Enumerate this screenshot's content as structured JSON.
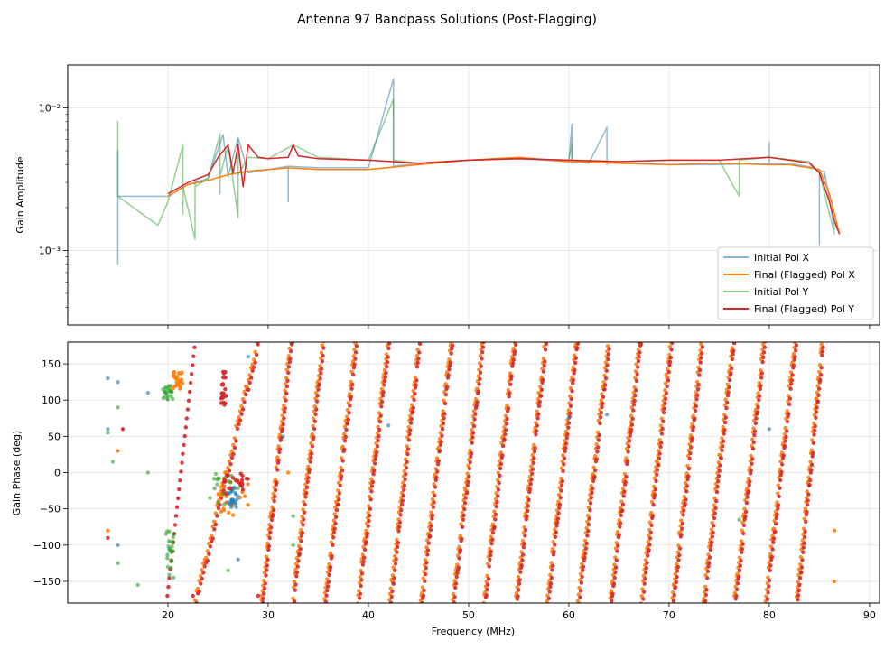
{
  "chart_data": {
    "type": "line",
    "title": "Antenna 97 Bandpass Solutions (Post-Flagging)",
    "xlabel": "Frequency (MHz)",
    "xlim": [
      10,
      91
    ],
    "x_ticks": [
      "20",
      "30",
      "40",
      "50",
      "60",
      "70",
      "80",
      "90"
    ],
    "x_tick_values": [
      20,
      30,
      40,
      50,
      60,
      70,
      80,
      90
    ],
    "colors": {
      "initial_x": "#1f77b4",
      "final_x": "#ff7f0e",
      "initial_y": "#2ca02c",
      "final_y": "#d62728"
    },
    "panels": [
      {
        "name": "amplitude",
        "ylabel": "Gain Amplitude",
        "yscale": "log",
        "ylim": [
          0.0003,
          0.02
        ],
        "y_ticks": [
          "10⁻²",
          "10⁻³"
        ],
        "y_tick_values": [
          0.01,
          0.001
        ],
        "series": [
          {
            "name": "Initial Pol X",
            "key": "initial_x",
            "x": [
              15,
              15,
              15,
              20,
              22,
              24,
              25.5,
              26,
              27,
              28,
              29,
              30,
              32,
              32,
              32,
              35,
              40,
              42.5,
              42.5,
              42.5,
              45,
              50,
              55,
              60,
              60.3,
              60.3,
              60.3,
              62,
              63.8,
              63.8,
              63.8,
              65,
              70,
              75,
              80,
              80,
              80,
              82,
              84.5,
              85,
              85,
              85,
              85.5,
              85.5,
              85.5,
              86.5
            ],
            "values": [
              0.0008,
              0.005,
              0.0024,
              0.0024,
              0.0029,
              0.0032,
              0.0065,
              0.0033,
              0.0062,
              0.0035,
              0.0036,
              0.0037,
              0.0039,
              0.0022,
              0.0039,
              0.0038,
              0.0038,
              0.016,
              0.0039,
              0.0039,
              0.0041,
              0.0043,
              0.0044,
              0.0042,
              0.0077,
              0.0042,
              0.0042,
              0.0041,
              0.0073,
              0.004,
              0.0041,
              0.0041,
              0.004,
              0.004,
              0.0041,
              0.0057,
              0.0041,
              0.0041,
              0.0038,
              0.0036,
              0.0011,
              0.0036,
              0.0036,
              0.0032,
              0.0036,
              0.0014
            ]
          },
          {
            "name": "Final (Flagged) Pol X",
            "key": "final_x",
            "x": [
              20,
              22,
              24,
              26,
              28,
              30,
              32,
              35,
              40,
              45,
              50,
              55,
              60,
              65,
              70,
              75,
              80,
              82,
              84,
              85,
              86,
              86.5,
              87
            ],
            "values": [
              0.0024,
              0.0029,
              0.0031,
              0.0034,
              0.0036,
              0.0037,
              0.0038,
              0.0037,
              0.0037,
              0.004,
              0.0043,
              0.0045,
              0.0042,
              0.0041,
              0.004,
              0.0041,
              0.004,
              0.004,
              0.0038,
              0.0037,
              0.0025,
              0.0018,
              0.0013
            ]
          },
          {
            "name": "Initial Pol Y",
            "key": "initial_y",
            "x": [
              15,
              15,
              15,
              19,
              20,
              21.5,
              21.5,
              21.5,
              22.7,
              22.7,
              22.7,
              24,
              25.2,
              25.2,
              25.2,
              26,
              27,
              27,
              27,
              28,
              30,
              32.5,
              35,
              40,
              42.5,
              42.5,
              42.5,
              45,
              50,
              55,
              60,
              60.3,
              60.3,
              60.3,
              65,
              70,
              75,
              77,
              77,
              77,
              80,
              84,
              85,
              86.5
            ],
            "values": [
              0.0024,
              0.008,
              0.0024,
              0.0015,
              0.0022,
              0.0055,
              0.0018,
              0.0028,
              0.0012,
              0.003,
              0.0028,
              0.0032,
              0.0066,
              0.0025,
              0.0033,
              0.0055,
              0.0017,
              0.006,
              0.0034,
              0.0045,
              0.0044,
              0.0055,
              0.0045,
              0.0043,
              0.0115,
              0.0043,
              0.0043,
              0.0041,
              0.0043,
              0.0044,
              0.0043,
              0.0056,
              0.0043,
              0.0043,
              0.0042,
              0.0043,
              0.0043,
              0.0024,
              0.0043,
              0.0043,
              0.0045,
              0.0042,
              0.0035,
              0.0013
            ]
          },
          {
            "name": "Final (Flagged) Pol Y",
            "key": "final_y",
            "x": [
              20,
              22,
              24,
              25,
              26,
              26.5,
              27,
              27.5,
              28,
              29,
              30,
              32,
              32.5,
              33,
              35,
              40,
              45,
              50,
              55,
              60,
              65,
              70,
              75,
              80,
              82,
              84,
              85,
              86,
              86.5,
              87
            ],
            "values": [
              0.0025,
              0.003,
              0.0034,
              0.0045,
              0.0055,
              0.0035,
              0.0055,
              0.0028,
              0.0055,
              0.0045,
              0.0044,
              0.0045,
              0.0055,
              0.0046,
              0.0044,
              0.0043,
              0.0041,
              0.0043,
              0.0044,
              0.0043,
              0.0042,
              0.0043,
              0.0043,
              0.0045,
              0.0043,
              0.0041,
              0.0035,
              0.0022,
              0.0016,
              0.0013
            ]
          }
        ],
        "legend": {
          "location": "lower right",
          "entries": [
            "Initial Pol X",
            "Final (Flagged) Pol X",
            "Initial Pol Y",
            "Final (Flagged) Pol Y"
          ]
        }
      },
      {
        "name": "phase",
        "ylabel": "Gain Phase (deg)",
        "yscale": "linear",
        "ylim": [
          -180,
          180
        ],
        "y_ticks": [
          "150",
          "100",
          "50",
          "0",
          "−50",
          "−100",
          "−150"
        ],
        "y_tick_values": [
          150,
          100,
          50,
          0,
          -50,
          -100,
          -150
        ],
        "type": "scatter",
        "phase_wrap_frequencies": [
          22.8,
          29.4,
          32.5,
          35.7,
          39.0,
          42.2,
          45.3,
          48.5,
          51.6,
          54.8,
          57.9,
          61.0,
          64.2,
          67.3,
          70.4,
          73.5,
          76.6,
          79.7,
          82.8,
          85.5
        ],
        "stray_points": [
          {
            "x": 14,
            "y": 60,
            "key": "initial_x"
          },
          {
            "x": 14,
            "y": 130,
            "key": "initial_x"
          },
          {
            "x": 15,
            "y": 125,
            "key": "initial_x"
          },
          {
            "x": 15,
            "y": -100,
            "key": "initial_x"
          },
          {
            "x": 18,
            "y": 110,
            "key": "initial_x"
          },
          {
            "x": 27,
            "y": -120,
            "key": "initial_x"
          },
          {
            "x": 28,
            "y": 160,
            "key": "initial_x"
          },
          {
            "x": 31.5,
            "y": 50,
            "key": "initial_x"
          },
          {
            "x": 42,
            "y": 65,
            "key": "initial_x"
          },
          {
            "x": 60,
            "y": 75,
            "key": "initial_x"
          },
          {
            "x": 63.8,
            "y": 80,
            "key": "initial_x"
          },
          {
            "x": 80,
            "y": 60,
            "key": "initial_x"
          },
          {
            "x": 14,
            "y": -80,
            "key": "final_x"
          },
          {
            "x": 15,
            "y": 30,
            "key": "final_x"
          },
          {
            "x": 32,
            "y": 0,
            "key": "final_x"
          },
          {
            "x": 86.5,
            "y": -80,
            "key": "final_x"
          },
          {
            "x": 86.5,
            "y": -150,
            "key": "final_x"
          },
          {
            "x": 14,
            "y": 55,
            "key": "initial_y"
          },
          {
            "x": 14.5,
            "y": 15,
            "key": "initial_y"
          },
          {
            "x": 15,
            "y": 90,
            "key": "initial_y"
          },
          {
            "x": 15,
            "y": -125,
            "key": "initial_y"
          },
          {
            "x": 17,
            "y": -155,
            "key": "initial_y"
          },
          {
            "x": 18,
            "y": 0,
            "key": "initial_y"
          },
          {
            "x": 20,
            "y": -130,
            "key": "initial_y"
          },
          {
            "x": 26,
            "y": -135,
            "key": "initial_y"
          },
          {
            "x": 32.5,
            "y": -60,
            "key": "initial_y"
          },
          {
            "x": 32.5,
            "y": -100,
            "key": "initial_y"
          },
          {
            "x": 77,
            "y": -65,
            "key": "initial_y"
          },
          {
            "x": 14,
            "y": -90,
            "key": "final_y"
          },
          {
            "x": 15.5,
            "y": 60,
            "key": "final_y"
          },
          {
            "x": 22.5,
            "y": -170,
            "key": "final_y"
          },
          {
            "x": 29,
            "y": -170,
            "key": "final_y"
          }
        ],
        "clusters": [
          {
            "x0": 19.5,
            "x1": 20.5,
            "y0": 100,
            "y1": 120,
            "key": "initial_y"
          },
          {
            "x0": 20.5,
            "x1": 21.5,
            "y0": 115,
            "y1": 140,
            "key": "final_x"
          },
          {
            "x0": 25,
            "x1": 28,
            "y0": -60,
            "y1": -10,
            "key": "final_x"
          },
          {
            "x0": 24,
            "x1": 27,
            "y0": -50,
            "y1": 0,
            "key": "initial_y"
          },
          {
            "x0": 25.5,
            "x1": 28,
            "y0": -30,
            "y1": 0,
            "key": "final_y"
          },
          {
            "x0": 26,
            "y0": -50,
            "x1": 27,
            "y1": -20,
            "key": "initial_x"
          },
          {
            "x0": 25.3,
            "x1": 25.8,
            "y0": 90,
            "y1": 140,
            "key": "final_y"
          },
          {
            "x0": 19.8,
            "x1": 20.6,
            "y0": -150,
            "y1": -80,
            "key": "initial_y"
          }
        ]
      }
    ]
  }
}
